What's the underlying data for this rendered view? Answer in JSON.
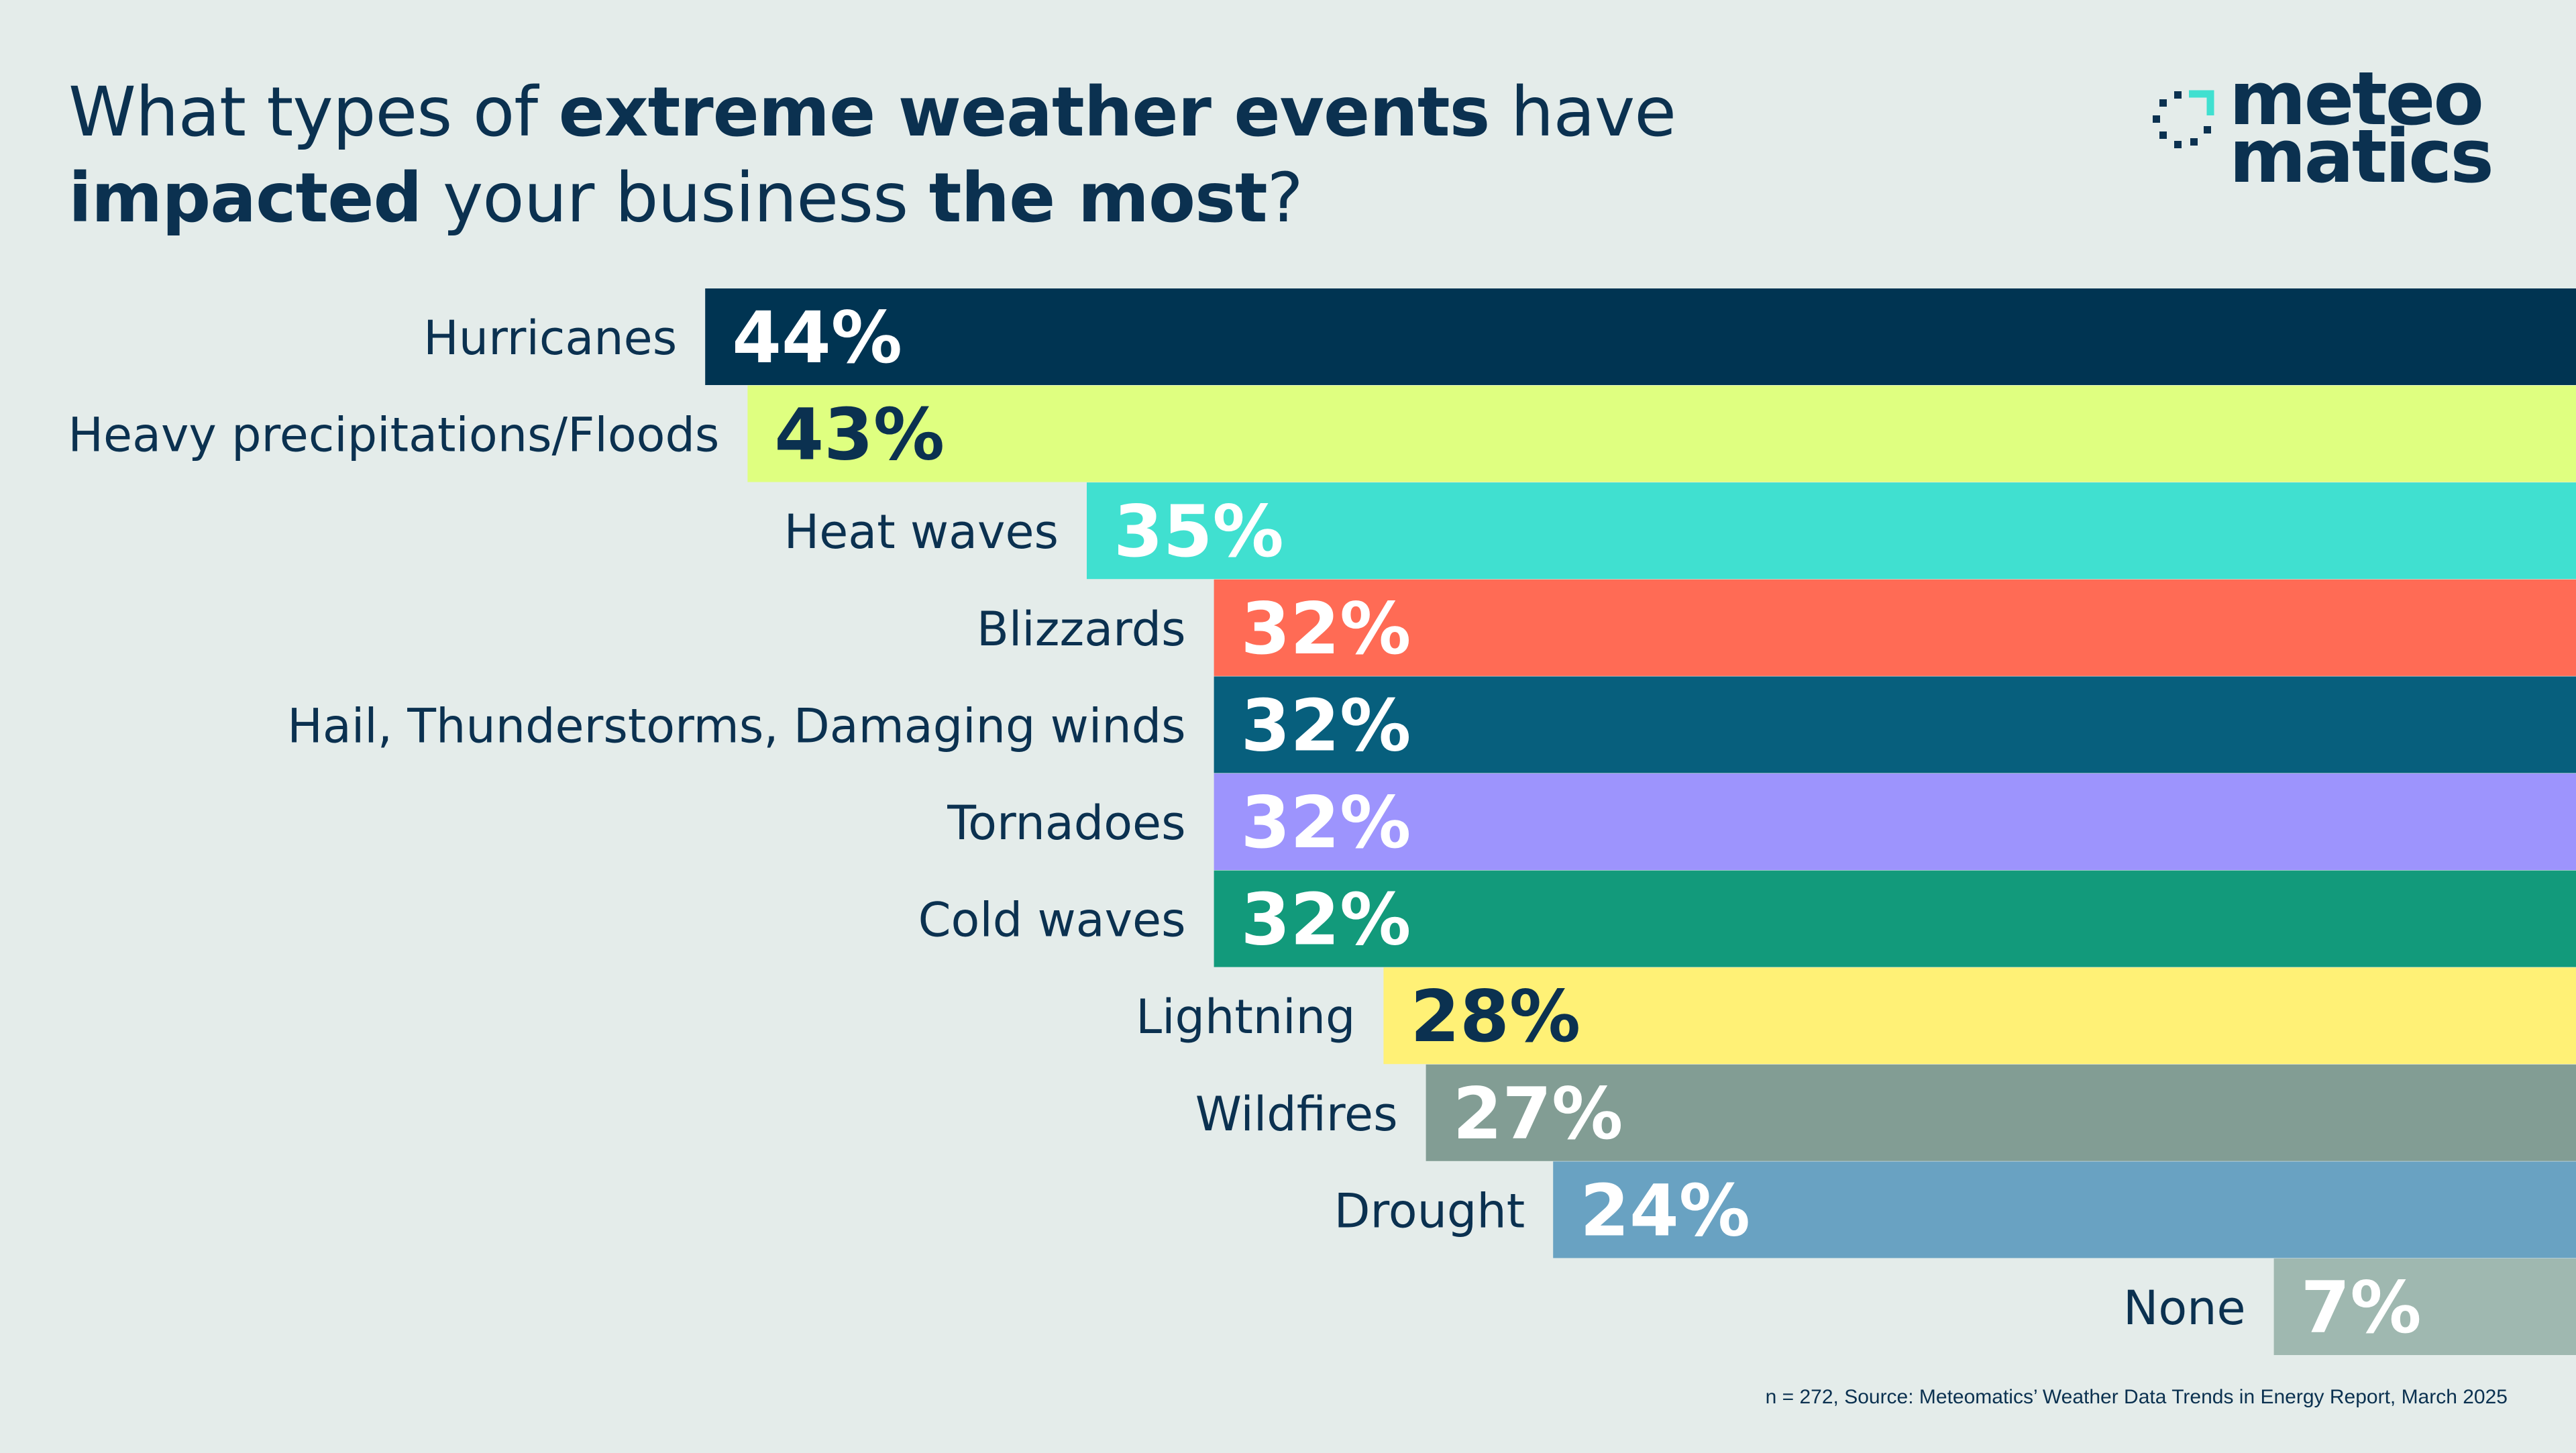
{
  "title": {
    "p1": "What types of ",
    "b1": "extreme weather events",
    "p2": " have",
    "b2": "impacted",
    "p3": " your business ",
    "b3": "the most",
    "p4": "?"
  },
  "logo": {
    "line1": "meteo",
    "line2": "matics",
    "mark_icon": "meteomatics-logo-icon"
  },
  "footnote": "n = 272, Source: Meteomatics’ Weather Data Trends in Energy Report, March 2025",
  "chart_data": {
    "type": "bar",
    "orientation": "horizontal",
    "categories": [
      "Hurricanes",
      "Heavy precipitations/Floods",
      "Heat waves",
      "Blizzards",
      "Hail, Thunderstorms, Damaging winds",
      "Tornadoes",
      "Cold waves",
      "Lightning",
      "Wildfires",
      "Drought",
      "None"
    ],
    "values": [
      44,
      43,
      35,
      32,
      32,
      32,
      32,
      28,
      27,
      24,
      7
    ],
    "labels": [
      "44%",
      "43%",
      "35%",
      "32%",
      "32%",
      "32%",
      "32%",
      "28%",
      "27%",
      "24%",
      "7%"
    ],
    "colors": [
      "#003452",
      "#dfff80",
      "#40e0d0",
      "#ff6b55",
      "#075f7d",
      "#9d94fd",
      "#129a7b",
      "#fff176",
      "#829d94",
      "#69a2c2",
      "#9fb8b0"
    ],
    "label_colors": [
      "#ffffff",
      "#0b3150",
      "#ffffff",
      "#ffffff",
      "#ffffff",
      "#ffffff",
      "#ffffff",
      "#0b3150",
      "#ffffff",
      "#ffffff",
      "#ffffff"
    ],
    "xlabel": "",
    "ylabel": "",
    "grid": false,
    "legend": "none"
  }
}
